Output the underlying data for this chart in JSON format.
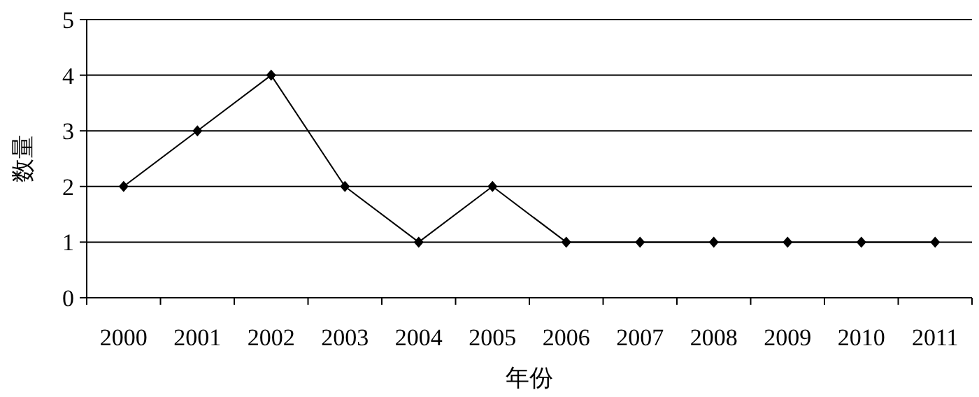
{
  "chart_data": {
    "type": "line",
    "xlabel": "年份",
    "ylabel": "数量",
    "categories": [
      "2000",
      "2001",
      "2002",
      "2003",
      "2004",
      "2005",
      "2006",
      "2007",
      "2008",
      "2009",
      "2010",
      "2011"
    ],
    "series": [
      {
        "color": "#000000",
        "values": [
          2,
          3,
          4,
          2,
          1,
          2,
          1,
          1,
          1,
          1,
          1,
          1
        ]
      }
    ],
    "ylim": [
      0,
      5
    ],
    "yticks": [
      0,
      1,
      2,
      3,
      4,
      5
    ],
    "grid": "y",
    "marker": "diamond",
    "line_style": "solid"
  }
}
